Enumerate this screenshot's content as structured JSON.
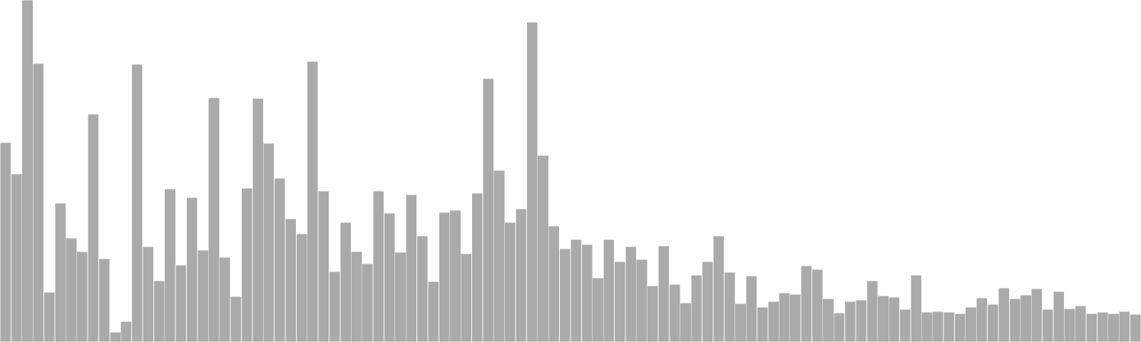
{
  "chart_data": {
    "type": "bar",
    "title": "",
    "xlabel": "",
    "ylabel": "",
    "ylim": [
      0,
      480
    ],
    "grid": false,
    "legend": "none",
    "bar_color": "#aaaaaa",
    "bar_edge_color": "#ffffff",
    "background": "#ffffff",
    "values": [
      280,
      236,
      480,
      391,
      70,
      195,
      146,
      127,
      320,
      117,
      14,
      29,
      390,
      134,
      86,
      215,
      108,
      203,
      129,
      343,
      119,
      64,
      216,
      342,
      279,
      230,
      173,
      152,
      394,
      212,
      99,
      168,
      127,
      110,
      212,
      181,
      126,
      207,
      149,
      85,
      182,
      185,
      124,
      209,
      370,
      241,
      168,
      187,
      449,
      262,
      163,
      131,
      144,
      137,
      90,
      144,
      113,
      134,
      116,
      79,
      135,
      81,
      55,
      94,
      113,
      149,
      98,
      54,
      93,
      49,
      57,
      69,
      67,
      107,
      102,
      61,
      41,
      57,
      59,
      86,
      65,
      63,
      46,
      94,
      42,
      43,
      42,
      40,
      49,
      62,
      53,
      76,
      61,
      66,
      75,
      46,
      71,
      47,
      51,
      40,
      42,
      40,
      43,
      39
    ]
  }
}
